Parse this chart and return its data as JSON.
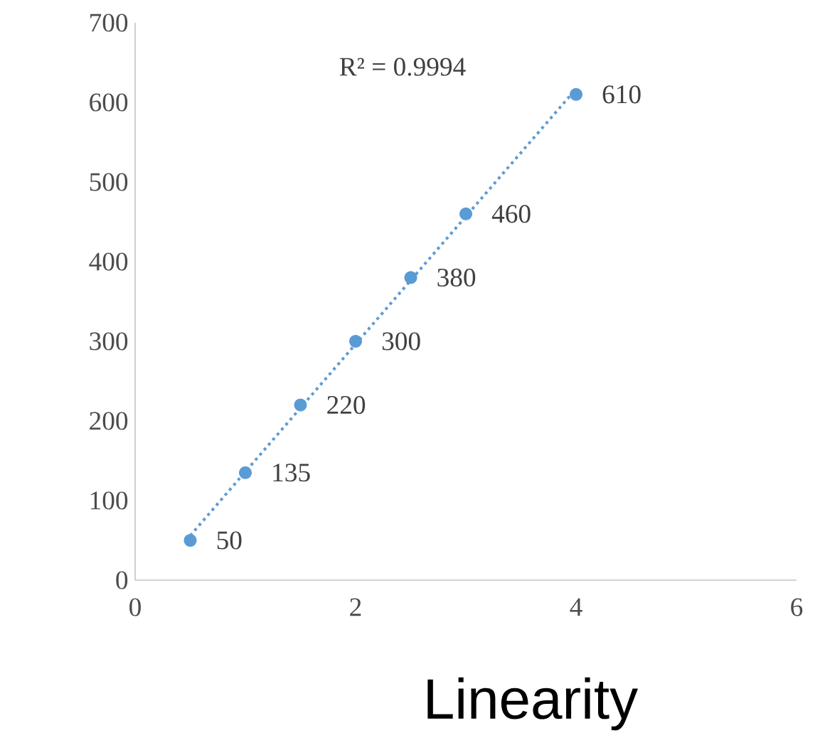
{
  "chart_data": {
    "type": "scatter",
    "xlabel": "Linearity",
    "annotations": [
      "R² = 0.9994"
    ],
    "xlim": [
      0,
      6
    ],
    "xticks": [
      0,
      2,
      4,
      6
    ],
    "ylim": [
      0,
      700
    ],
    "yticks": [
      0,
      100,
      200,
      300,
      400,
      500,
      600,
      700
    ],
    "grid": false,
    "series": [
      {
        "color": "#5b9bd5",
        "marker": "circle",
        "x": [
          0.5,
          1,
          1.5,
          2,
          2.5,
          3,
          4
        ],
        "values": [
          50,
          135,
          220,
          300,
          380,
          460,
          610
        ],
        "value_labels": [
          "50",
          "135",
          "220",
          "300",
          "380",
          "460",
          "610"
        ]
      },
      {
        "type": "line",
        "color": "#5b9bd5",
        "marker": "none",
        "line_style": "dotted",
        "x": [
          0.5,
          4
        ],
        "values": [
          56,
          617
        ]
      }
    ]
  }
}
